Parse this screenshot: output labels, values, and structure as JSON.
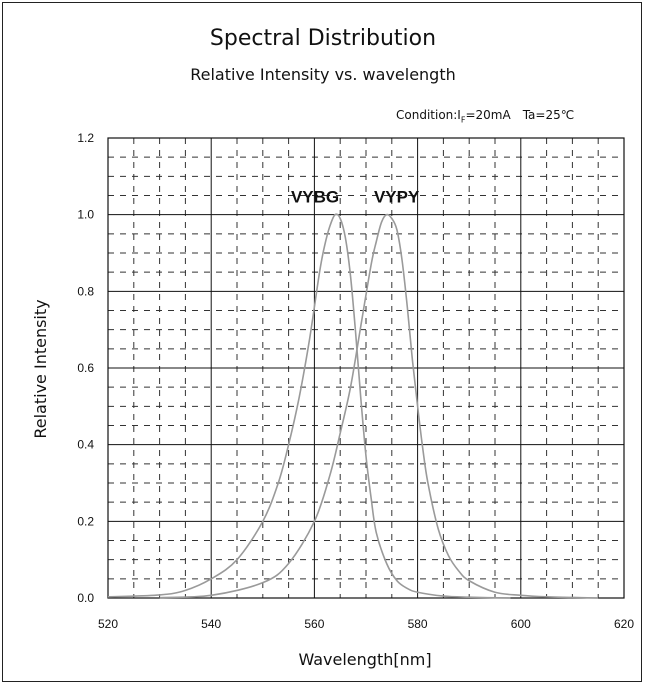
{
  "chart_data": {
    "type": "line",
    "title": "Spectral Distribution",
    "subtitle": "Relative Intensity vs. wavelength",
    "condition": {
      "prefix": "Condition:I",
      "subscript": "F",
      "current": "=20mA",
      "temperature": "Ta=25℃"
    },
    "xlabel": "Wavelength[nm]",
    "ylabel": "Relative Intensity",
    "xlim": [
      520,
      620
    ],
    "ylim": [
      0,
      1.2
    ],
    "xticks": [
      "520",
      "540",
      "560",
      "580",
      "600",
      "620"
    ],
    "yticks": [
      "0.0",
      "0.2",
      "0.4",
      "0.6",
      "0.8",
      "1.0",
      "1.2"
    ],
    "grid": true,
    "series": [
      {
        "name": "VYBG",
        "x": [
          520,
          530,
          535,
          540,
          545,
          550,
          553,
          555,
          557,
          559,
          561,
          562,
          563,
          564,
          565,
          566,
          567,
          568,
          569,
          570,
          571,
          572,
          574,
          576,
          578,
          580,
          585,
          590,
          598
        ],
        "y": [
          0.003,
          0.008,
          0.02,
          0.05,
          0.1,
          0.2,
          0.3,
          0.4,
          0.52,
          0.67,
          0.85,
          0.92,
          0.97,
          1.0,
          0.99,
          0.94,
          0.84,
          0.69,
          0.52,
          0.37,
          0.26,
          0.17,
          0.09,
          0.045,
          0.025,
          0.015,
          0.005,
          0.002,
          0.0
        ]
      },
      {
        "name": "VYPY",
        "x": [
          530,
          540,
          550,
          555,
          560,
          563,
          565,
          567,
          569,
          571,
          572,
          573,
          574,
          575,
          576,
          577,
          578,
          579,
          580,
          581,
          582,
          584,
          586,
          588,
          590,
          595,
          600,
          605,
          610,
          615
        ],
        "y": [
          0.001,
          0.007,
          0.04,
          0.09,
          0.2,
          0.32,
          0.43,
          0.55,
          0.71,
          0.87,
          0.93,
          0.98,
          1.0,
          0.99,
          0.96,
          0.88,
          0.76,
          0.62,
          0.5,
          0.39,
          0.3,
          0.18,
          0.11,
          0.07,
          0.045,
          0.015,
          0.007,
          0.003,
          0.0015,
          0.0
        ]
      }
    ]
  },
  "colors": {
    "curve": "#9a9a9a",
    "grid_major": "#111111",
    "grid_minor": "#333333"
  }
}
